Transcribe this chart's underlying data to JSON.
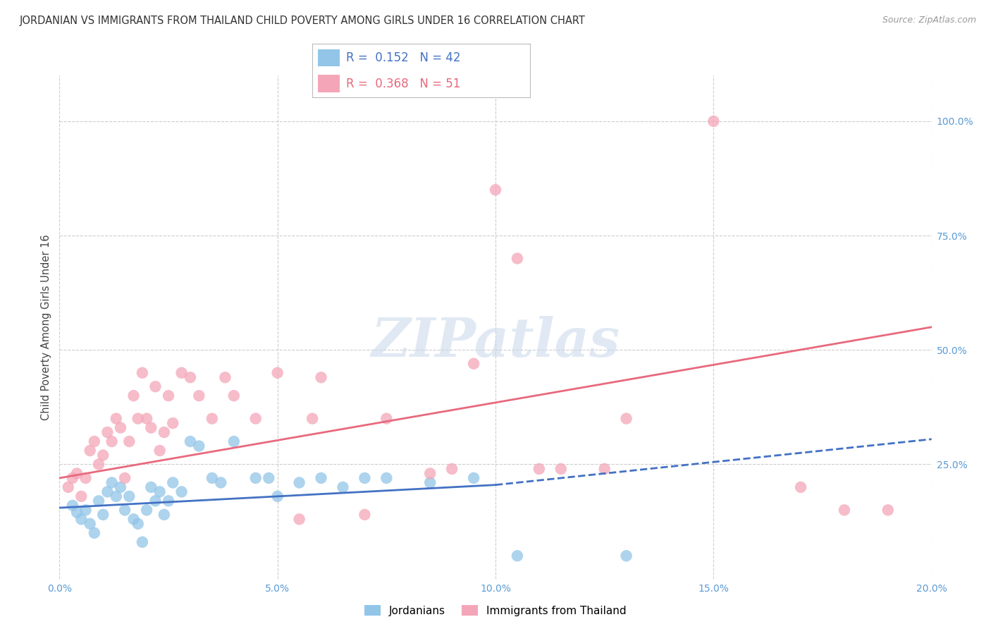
{
  "title": "JORDANIAN VS IMMIGRANTS FROM THAILAND CHILD POVERTY AMONG GIRLS UNDER 16 CORRELATION CHART",
  "source": "Source: ZipAtlas.com",
  "ylabel": "Child Poverty Among Girls Under 16",
  "xlim": [
    0.0,
    20.0
  ],
  "ylim": [
    0.0,
    110.0
  ],
  "ytick_vals": [
    0,
    25,
    50,
    75,
    100
  ],
  "ytick_labels": [
    "",
    "25.0%",
    "50.0%",
    "75.0%",
    "100.0%"
  ],
  "xtick_vals": [
    0,
    5,
    10,
    15,
    20
  ],
  "xtick_labels": [
    "0.0%",
    "5.0%",
    "10.0%",
    "15.0%",
    "20.0%"
  ],
  "background_color": "#ffffff",
  "grid_color": "#cccccc",
  "watermark_text": "ZIPatlas",
  "blue_color": "#92c5e8",
  "pink_color": "#f4a6b8",
  "blue_line_color": "#4472c4",
  "pink_line_color": "#e8697d",
  "title_fontsize": 10.5,
  "tick_fontsize": 10,
  "tick_color": "#5b9bd5",
  "legend_r1_text": "R =  0.152   N = 42",
  "legend_r2_text": "R =  0.368   N = 51",
  "legend_r1_color": "#4472c4",
  "legend_r2_color": "#e8697d",
  "blue_scatter": [
    [
      0.3,
      16.0
    ],
    [
      0.4,
      14.5
    ],
    [
      0.5,
      13.0
    ],
    [
      0.6,
      15.0
    ],
    [
      0.7,
      12.0
    ],
    [
      0.8,
      10.0
    ],
    [
      0.9,
      17.0
    ],
    [
      1.0,
      14.0
    ],
    [
      1.1,
      19.0
    ],
    [
      1.2,
      21.0
    ],
    [
      1.3,
      18.0
    ],
    [
      1.4,
      20.0
    ],
    [
      1.5,
      15.0
    ],
    [
      1.6,
      18.0
    ],
    [
      1.7,
      13.0
    ],
    [
      1.8,
      12.0
    ],
    [
      1.9,
      8.0
    ],
    [
      2.0,
      15.0
    ],
    [
      2.1,
      20.0
    ],
    [
      2.2,
      17.0
    ],
    [
      2.3,
      19.0
    ],
    [
      2.4,
      14.0
    ],
    [
      2.5,
      17.0
    ],
    [
      2.6,
      21.0
    ],
    [
      2.8,
      19.0
    ],
    [
      3.0,
      30.0
    ],
    [
      3.2,
      29.0
    ],
    [
      3.5,
      22.0
    ],
    [
      3.7,
      21.0
    ],
    [
      4.0,
      30.0
    ],
    [
      4.5,
      22.0
    ],
    [
      4.8,
      22.0
    ],
    [
      5.0,
      18.0
    ],
    [
      5.5,
      21.0
    ],
    [
      6.0,
      22.0
    ],
    [
      6.5,
      20.0
    ],
    [
      7.0,
      22.0
    ],
    [
      7.5,
      22.0
    ],
    [
      8.5,
      21.0
    ],
    [
      9.5,
      22.0
    ],
    [
      10.5,
      5.0
    ],
    [
      13.0,
      5.0
    ]
  ],
  "pink_scatter": [
    [
      0.2,
      20.0
    ],
    [
      0.3,
      22.0
    ],
    [
      0.4,
      23.0
    ],
    [
      0.5,
      18.0
    ],
    [
      0.6,
      22.0
    ],
    [
      0.7,
      28.0
    ],
    [
      0.8,
      30.0
    ],
    [
      0.9,
      25.0
    ],
    [
      1.0,
      27.0
    ],
    [
      1.1,
      32.0
    ],
    [
      1.2,
      30.0
    ],
    [
      1.3,
      35.0
    ],
    [
      1.4,
      33.0
    ],
    [
      1.5,
      22.0
    ],
    [
      1.6,
      30.0
    ],
    [
      1.7,
      40.0
    ],
    [
      1.8,
      35.0
    ],
    [
      1.9,
      45.0
    ],
    [
      2.0,
      35.0
    ],
    [
      2.1,
      33.0
    ],
    [
      2.2,
      42.0
    ],
    [
      2.3,
      28.0
    ],
    [
      2.4,
      32.0
    ],
    [
      2.5,
      40.0
    ],
    [
      2.6,
      34.0
    ],
    [
      2.8,
      45.0
    ],
    [
      3.0,
      44.0
    ],
    [
      3.2,
      40.0
    ],
    [
      3.5,
      35.0
    ],
    [
      3.8,
      44.0
    ],
    [
      4.0,
      40.0
    ],
    [
      4.5,
      35.0
    ],
    [
      5.0,
      45.0
    ],
    [
      5.5,
      13.0
    ],
    [
      5.8,
      35.0
    ],
    [
      6.0,
      44.0
    ],
    [
      7.0,
      14.0
    ],
    [
      7.5,
      35.0
    ],
    [
      8.5,
      23.0
    ],
    [
      9.0,
      24.0
    ],
    [
      9.5,
      47.0
    ],
    [
      10.0,
      85.0
    ],
    [
      10.5,
      70.0
    ],
    [
      11.0,
      24.0
    ],
    [
      11.5,
      24.0
    ],
    [
      12.5,
      24.0
    ],
    [
      13.0,
      35.0
    ],
    [
      15.0,
      100.0
    ],
    [
      17.0,
      20.0
    ],
    [
      18.0,
      15.0
    ],
    [
      19.0,
      15.0
    ]
  ],
  "blue_reg_x1": 0.0,
  "blue_reg_y1": 15.5,
  "blue_reg_x2": 10.0,
  "blue_reg_y2": 20.5,
  "blue_dash_x1": 10.0,
  "blue_dash_y1": 20.5,
  "blue_dash_x2": 20.0,
  "blue_dash_y2": 30.5,
  "pink_reg_x1": 0.0,
  "pink_reg_y1": 22.0,
  "pink_reg_x2": 20.0,
  "pink_reg_y2": 55.0
}
